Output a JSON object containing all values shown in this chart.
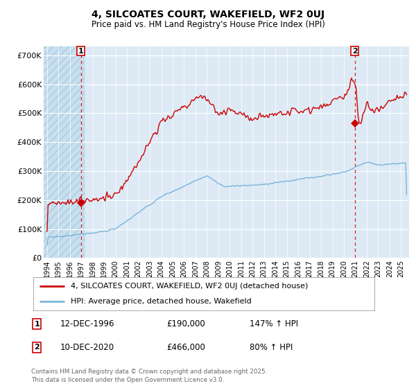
{
  "title1": "4, SILCOATES COURT, WAKEFIELD, WF2 0UJ",
  "title2": "Price paid vs. HM Land Registry's House Price Index (HPI)",
  "ylabel_ticks": [
    "£0",
    "£100K",
    "£200K",
    "£300K",
    "£400K",
    "£500K",
    "£600K",
    "£700K"
  ],
  "ytick_values": [
    0,
    100000,
    200000,
    300000,
    400000,
    500000,
    600000,
    700000
  ],
  "ylim": [
    0,
    730000
  ],
  "xlim_start": 1993.7,
  "xlim_end": 2025.7,
  "hpi_color": "#7ab3d9",
  "price_color": "#cc0000",
  "vline_color": "#cc0000",
  "sale1_year": 1996.95,
  "sale1_price": 190000,
  "sale1_label": "1",
  "sale2_year": 2020.95,
  "sale2_price": 466000,
  "sale2_label": "2",
  "legend_line1": "4, SILCOATES COURT, WAKEFIELD, WF2 0UJ (detached house)",
  "legend_line2": "HPI: Average price, detached house, Wakefield",
  "table_row1": [
    "1",
    "12-DEC-1996",
    "£190,000",
    "147% ↑ HPI"
  ],
  "table_row2": [
    "2",
    "10-DEC-2020",
    "£466,000",
    "80% ↑ HPI"
  ],
  "footnote": "Contains HM Land Registry data © Crown copyright and database right 2025.\nThis data is licensed under the Open Government Licence v3.0.",
  "bg_chart": "#ddeaf5",
  "grid_color": "#ffffff",
  "hatch_end_year": 1997.3,
  "xtick_years": [
    1994,
    1995,
    1996,
    1997,
    1998,
    1999,
    2000,
    2001,
    2002,
    2003,
    2004,
    2005,
    2006,
    2007,
    2008,
    2009,
    2010,
    2011,
    2012,
    2013,
    2014,
    2015,
    2016,
    2017,
    2018,
    2019,
    2020,
    2021,
    2022,
    2023,
    2024,
    2025
  ]
}
